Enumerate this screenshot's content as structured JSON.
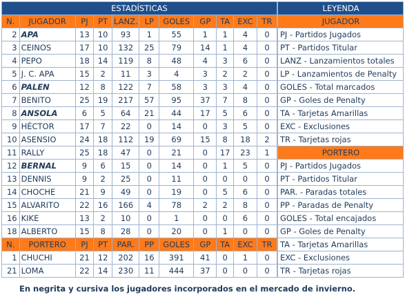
{
  "stats_title": "ESTADÍSTICAS",
  "legend_title": "LEYENDA",
  "columns": [
    "N.",
    "JUGADOR",
    "PJ",
    "PT",
    "LANZ.",
    "LP",
    "GOLES",
    "GP",
    "TA",
    "EXC",
    "TR"
  ],
  "players": [
    {
      "n": "2",
      "name": "APA",
      "bold": true,
      "v": [
        "13",
        "10",
        "93",
        "1",
        "55",
        "1",
        "1",
        "4",
        "0"
      ]
    },
    {
      "n": "3",
      "name": "CEINOS",
      "bold": false,
      "v": [
        "17",
        "10",
        "132",
        "25",
        "79",
        "14",
        "1",
        "4",
        "0"
      ]
    },
    {
      "n": "4",
      "name": "PEPO",
      "bold": false,
      "v": [
        "18",
        "14",
        "119",
        "8",
        "48",
        "4",
        "3",
        "6",
        "0"
      ]
    },
    {
      "n": "5",
      "name": "J. C. APA",
      "bold": false,
      "v": [
        "15",
        "2",
        "11",
        "3",
        "4",
        "3",
        "2",
        "2",
        "0"
      ]
    },
    {
      "n": "6",
      "name": "PALEN",
      "bold": true,
      "v": [
        "12",
        "8",
        "122",
        "7",
        "58",
        "3",
        "3",
        "4",
        "0"
      ]
    },
    {
      "n": "7",
      "name": "BENITO",
      "bold": false,
      "v": [
        "25",
        "19",
        "217",
        "57",
        "95",
        "37",
        "7",
        "8",
        "0"
      ]
    },
    {
      "n": "8",
      "name": "ANSOLA",
      "bold": true,
      "v": [
        "6",
        "5",
        "64",
        "21",
        "44",
        "17",
        "5",
        "6",
        "0"
      ]
    },
    {
      "n": "9",
      "name": "HÉCTOR",
      "bold": false,
      "v": [
        "17",
        "7",
        "22",
        "0",
        "14",
        "0",
        "3",
        "5",
        "0"
      ]
    },
    {
      "n": "10",
      "name": "ASENSIO",
      "bold": false,
      "v": [
        "24",
        "18",
        "112",
        "19",
        "69",
        "15",
        "8",
        "18",
        "2"
      ]
    },
    {
      "n": "11",
      "name": "RALLY",
      "bold": false,
      "v": [
        "25",
        "18",
        "47",
        "0",
        "21",
        "0",
        "17",
        "23",
        "1"
      ]
    },
    {
      "n": "12",
      "name": "BERNAL",
      "bold": true,
      "v": [
        "9",
        "6",
        "15",
        "0",
        "14",
        "0",
        "1",
        "5",
        "0"
      ]
    },
    {
      "n": "13",
      "name": "DENNIS",
      "bold": false,
      "v": [
        "9",
        "2",
        "25",
        "0",
        "11",
        "0",
        "0",
        "0",
        "0"
      ]
    },
    {
      "n": "14",
      "name": "CHOCHE",
      "bold": false,
      "v": [
        "21",
        "9",
        "49",
        "0",
        "19",
        "0",
        "5",
        "6",
        "0"
      ]
    },
    {
      "n": "15",
      "name": "ALVARITO",
      "bold": false,
      "v": [
        "22",
        "16",
        "166",
        "4",
        "78",
        "2",
        "2",
        "8",
        "0"
      ]
    },
    {
      "n": "16",
      "name": "KIKE",
      "bold": false,
      "v": [
        "13",
        "2",
        "10",
        "0",
        "1",
        "0",
        "0",
        "6",
        "0"
      ]
    },
    {
      "n": "18",
      "name": "ALBERTO",
      "bold": false,
      "v": [
        "15",
        "8",
        "28",
        "0",
        "20",
        "0",
        "1",
        "0",
        "0"
      ]
    }
  ],
  "goalkeeper_columns": [
    "N.",
    "PORTERO",
    "PJ",
    "PT",
    "PAR.",
    "PP",
    "GOLES",
    "GP",
    "TA",
    "EXC",
    "TR"
  ],
  "goalkeepers": [
    {
      "n": "1",
      "name": "CHUCHI",
      "v": [
        "21",
        "12",
        "202",
        "16",
        "391",
        "41",
        "0",
        "1",
        "0"
      ]
    },
    {
      "n": "21",
      "name": "LOMA",
      "v": [
        "22",
        "14",
        "230",
        "11",
        "444",
        "37",
        "0",
        "0",
        "0"
      ]
    }
  ],
  "legend": {
    "jugador_header": "JUGADOR",
    "jugador_items": [
      "PJ - Partidos Jugados",
      "PT - Partidos Titular",
      "LANZ - Lanzamientos totales",
      "LP - Lanzamientos de Penalty",
      "GOLES - Total marcados",
      "GP - Goles de Penalty",
      "TA - Tarjetas Amarillas",
      "EXC - Exclusiones",
      "TR - Tarjetas rojas"
    ],
    "portero_header": "PORTERO",
    "portero_items": [
      "PJ - Partidos Jugados",
      "PT - Partidos Titular",
      "PAR. - Paradas totales",
      "PP - Paradas de Penalty",
      "GOLES - Total encajados",
      "GP - Goles de Penalty",
      "TA - Tarjetas Amarillas",
      "EXC - Exclusiones",
      "TR - Tarjetas rojas"
    ]
  },
  "footnote": "En negrita y cursiva los jugadores incorporados en el mercado de invierno.",
  "colors": {
    "header_blue": "#1f4e8a",
    "header_orange": "#ff7a1a",
    "text": "#1f3a5a",
    "border": "#9db3cf"
  }
}
